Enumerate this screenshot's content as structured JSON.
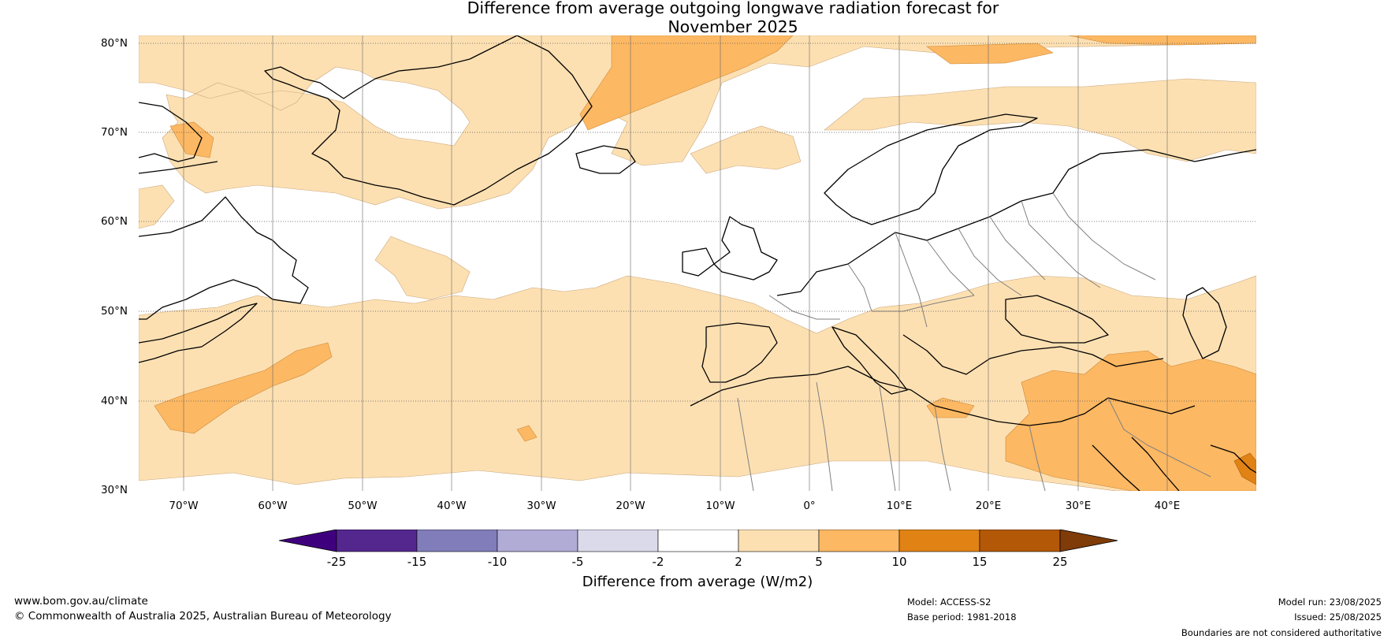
{
  "title_line1": "Difference from average outgoing longwave radiation forecast for",
  "title_line2": "November 2025",
  "map": {
    "lat_labels": [
      "80°N",
      "70°N",
      "60°N",
      "50°N",
      "40°N",
      "30°N"
    ],
    "lon_labels": [
      "70°W",
      "60°W",
      "50°W",
      "40°W",
      "30°W",
      "20°W",
      "10°W",
      "0°",
      "10°E",
      "20°E",
      "30°E",
      "40°E"
    ],
    "lat_range": [
      30,
      81
    ],
    "lon_range": [
      -75,
      50
    ],
    "grid": "dotted"
  },
  "colorbar": {
    "ticks": [
      "-25",
      "-15",
      "-10",
      "-5",
      "-2",
      "2",
      "5",
      "10",
      "15",
      "25"
    ],
    "colors": [
      "#3f007d",
      "#54278f",
      "#807dba",
      "#b1acd6",
      "#dadaeb",
      "#ffffff",
      "#fde0b2",
      "#fdb863",
      "#e08214",
      "#b35806",
      "#7f3b08"
    ],
    "label": "Difference from average (W/m2)",
    "extend": "both"
  },
  "footer": {
    "url": "www.bom.gov.au/climate",
    "copyright": "© Commonwealth of Australia 2025, Australian Bureau of Meteorology",
    "model": "Model: ACCESS-S2",
    "base_period": "Base period: 1981-2018",
    "model_run": "Model run: 23/08/2025",
    "issued": "Issued: 25/08/2025",
    "disclaimer": "Boundaries are not considered authoritative"
  }
}
